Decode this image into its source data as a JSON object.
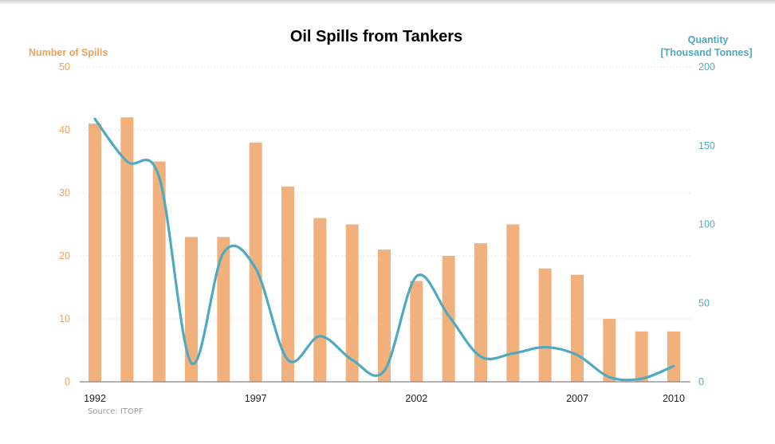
{
  "chart_data": {
    "type": "bar+line",
    "title": "Oil Spills from Tankers",
    "source": "Source: ITOPF",
    "x": [
      1992,
      1993,
      1994,
      1995,
      1996,
      1997,
      1998,
      1999,
      2000,
      2001,
      2002,
      2003,
      2004,
      2005,
      2006,
      2007,
      2008,
      2009,
      2010
    ],
    "xtick_labels": [
      "1992",
      "1997",
      "2002",
      "2007",
      "2010"
    ],
    "left_axis": {
      "title": "Number of Spills",
      "ylim": [
        0,
        50
      ],
      "ticks": [
        "0",
        "10",
        "20",
        "30",
        "40",
        "50"
      ],
      "color": "#f2b07c"
    },
    "right_axis": {
      "title_line1": "Quantity",
      "title_line2": "[Thousand Tonnes]",
      "ylim": [
        0,
        200
      ],
      "ticks": [
        "0",
        "50",
        "100",
        "150",
        "200"
      ],
      "color": "#4fa9c0"
    },
    "series": [
      {
        "type": "bar",
        "axis": "left",
        "values": [
          41,
          42,
          35,
          23,
          23,
          38,
          31,
          26,
          25,
          21,
          16,
          20,
          22,
          25,
          18,
          17,
          10,
          8,
          8
        ]
      },
      {
        "type": "line",
        "axis": "right",
        "smooth": true,
        "values": [
          167,
          140,
          130,
          12,
          82,
          72,
          14,
          29,
          14,
          7,
          67,
          42,
          16,
          18,
          22,
          17,
          3,
          2,
          10
        ]
      }
    ],
    "grid": true
  }
}
